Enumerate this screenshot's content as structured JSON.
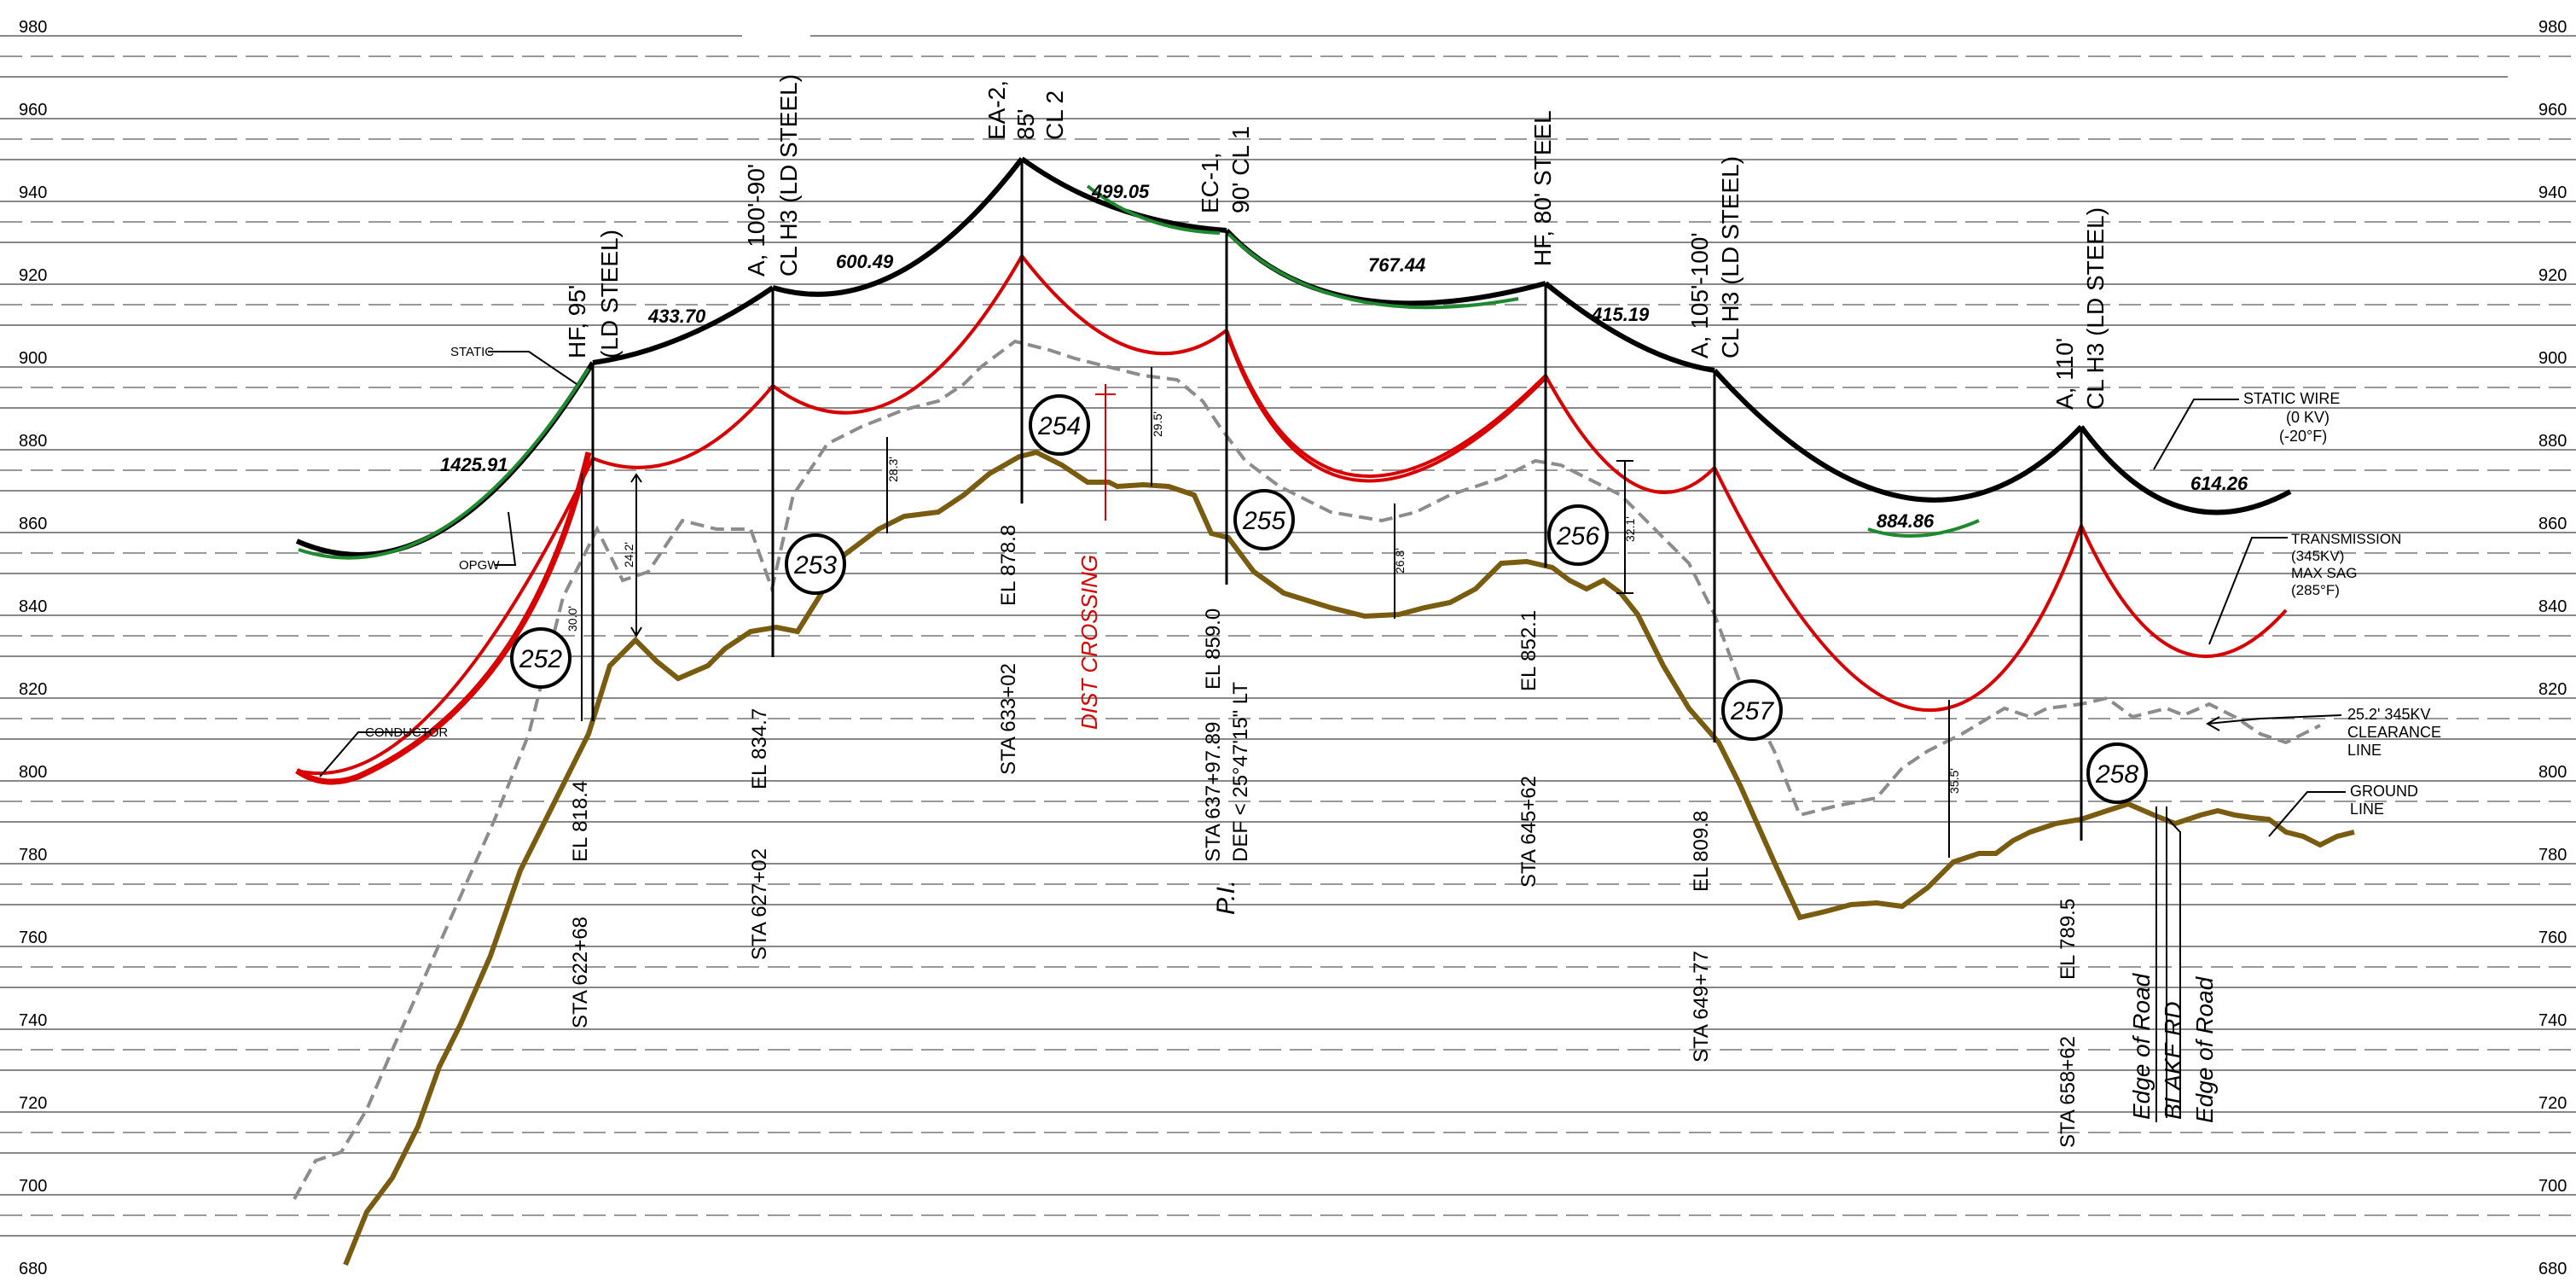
{
  "elevation_ticks": [
    "980",
    "960",
    "940",
    "920",
    "900",
    "880",
    "860",
    "840",
    "820",
    "800",
    "780",
    "760",
    "740",
    "720",
    "700",
    "680"
  ],
  "structures": [
    {
      "id": "252",
      "type": [
        "HF, 95'",
        "(LD STEEL)"
      ],
      "elevation": "EL 818.4",
      "station": "STA 622+68"
    },
    {
      "id": "253",
      "type": [
        "A, 100'-90'",
        "CL H3 (LD STEEL)"
      ],
      "elevation": "EL 834.7",
      "station": "STA 627+02"
    },
    {
      "id": "254",
      "type": [
        "EA-2,",
        "85'",
        "CL 2"
      ],
      "elevation": "EL 878.8",
      "station": "STA 633+02"
    },
    {
      "id": "255",
      "type": [
        "EC-1,",
        "90' CL 1"
      ],
      "elevation": "EL 859.0",
      "station": "STA 637+97.89",
      "deflection": "DEF < 25°47'15\" LT",
      "pi_label": "P.I."
    },
    {
      "id": "256",
      "type": [
        "HF, 80' STEEL"
      ],
      "elevation": "EL 852.1",
      "station": "STA 645+62"
    },
    {
      "id": "257",
      "type": [
        "A, 105'-100'",
        "CL H3 (LD STEEL)"
      ],
      "elevation": "EL 809.8",
      "station": "STA 649+77"
    },
    {
      "id": "258",
      "type": [
        "A, 110'",
        "CL H3 (LD STEEL)"
      ],
      "elevation": "EL 789.5",
      "station": "STA 658+62"
    }
  ],
  "span_lengths": [
    "1425.91",
    "433.70",
    "600.49",
    "499.05",
    "767.44",
    "415.19",
    "884.86",
    "614.26"
  ],
  "clearances": [
    "30.0'",
    "24.2'",
    "28.3'",
    "29.5'",
    "26.8'",
    "32.1'",
    "35.5'"
  ],
  "crossing_label": "DIST CROSSING",
  "road_labels": [
    "Edge of Road",
    "BLAKE RD",
    "Edge of Road"
  ],
  "legend": {
    "static": "STATIC",
    "opgw": "OPGW",
    "conductor": "CONDUCTOR",
    "static_wire": [
      "STATIC WIRE",
      "(0 KV)",
      "(-20°F)"
    ],
    "transmission": [
      "TRANSMISSION",
      "(345KV)",
      "MAX SAG",
      "(285°F)"
    ],
    "clearance_line": [
      "25.2' 345KV",
      "CLEARANCE",
      "LINE"
    ],
    "ground_line": [
      "GROUND",
      "LINE"
    ]
  },
  "colors": {
    "static_wire": "#000000",
    "opgw": "#1e8a2e",
    "conductor": "#d80000",
    "clearance": "#8c8c8c",
    "ground": "#7a5c10",
    "grid": "#888888"
  }
}
